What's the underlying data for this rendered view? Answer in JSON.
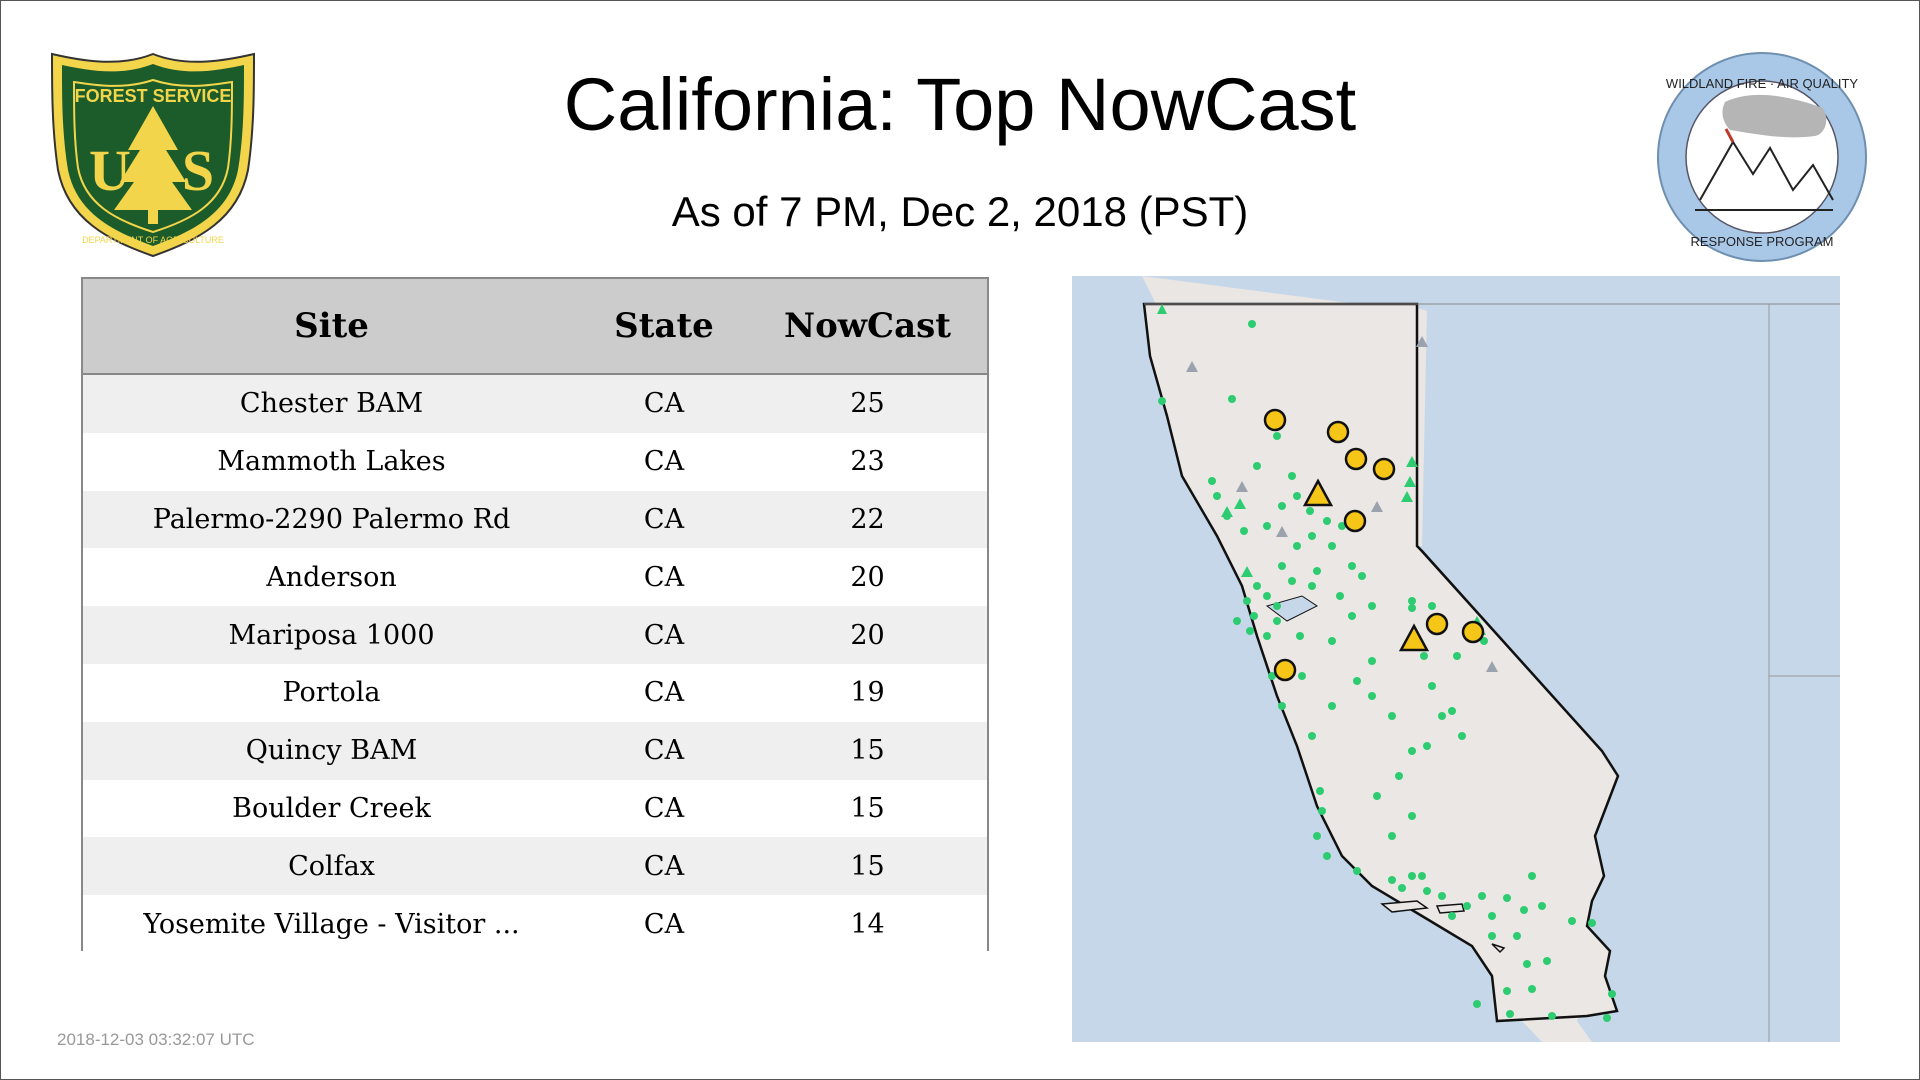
{
  "title": "California: Top NowCast",
  "subtitle": "As of  7 PM, Dec  2, 2018 (PST)",
  "timestamp": "2018-12-03 03:32:07 UTC",
  "logos": {
    "forest_service": {
      "top_text": "FOREST SERVICE",
      "letters": "US",
      "bottom_text": "DEPARTMENT OF AGRICULTURE"
    },
    "wildland": {
      "top_text": "WILDLAND FIRE · AIR QUALITY",
      "bottom_text": "RESPONSE PROGRAM"
    }
  },
  "table": {
    "columns": [
      "Site",
      "State",
      "NowCast"
    ],
    "rows": [
      {
        "site": "Chester BAM",
        "state": "CA",
        "nowcast": "25"
      },
      {
        "site": "Mammoth Lakes",
        "state": "CA",
        "nowcast": "23"
      },
      {
        "site": "Palermo-2290 Palermo Rd",
        "state": "CA",
        "nowcast": "22"
      },
      {
        "site": "Anderson",
        "state": "CA",
        "nowcast": "20"
      },
      {
        "site": "Mariposa 1000",
        "state": "CA",
        "nowcast": "20"
      },
      {
        "site": "Portola",
        "state": "CA",
        "nowcast": "19"
      },
      {
        "site": "Quincy BAM",
        "state": "CA",
        "nowcast": "15"
      },
      {
        "site": "Boulder Creek",
        "state": "CA",
        "nowcast": "15"
      },
      {
        "site": "Colfax",
        "state": "CA",
        "nowcast": "15"
      },
      {
        "site": "Yosemite Village - Visitor ...",
        "state": "CA",
        "nowcast": "14"
      }
    ]
  },
  "map": {
    "colors": {
      "ocean": "#c5d7e8",
      "land": "#e9e6e3",
      "good_marker": "#2ecc71",
      "moderate_marker": "#f5c518"
    }
  }
}
